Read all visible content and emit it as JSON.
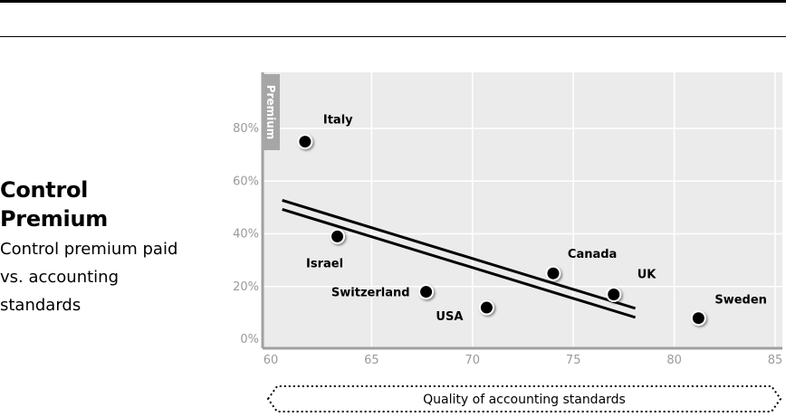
{
  "chart_data": {
    "type": "scatter",
    "title": "Control Premium",
    "subtitle": "Control premium paid vs. accounting standards",
    "xlabel": "Quality of accounting standards",
    "ylabel": "Premium",
    "xlim": [
      60,
      85
    ],
    "ylim": [
      0,
      100
    ],
    "x_ticks": [
      "60",
      "65",
      "70",
      "75",
      "80",
      "85"
    ],
    "y_ticks": [
      "0%",
      "20%",
      "40%",
      "60%",
      "80%"
    ],
    "grid": true,
    "points": [
      {
        "label": "Italy",
        "x": 61.7,
        "y": 75
      },
      {
        "label": "Israel",
        "x": 63.3,
        "y": 39
      },
      {
        "label": "Switzerland",
        "x": 67.7,
        "y": 18
      },
      {
        "label": "USA",
        "x": 70.7,
        "y": 12
      },
      {
        "label": "Canada",
        "x": 74.0,
        "y": 25
      },
      {
        "label": "UK",
        "x": 77.0,
        "y": 17
      },
      {
        "label": "Sweden",
        "x": 81.2,
        "y": 8
      }
    ],
    "trend_line": {
      "x": [
        60.3,
        77.8
      ],
      "y": [
        51,
        10
      ]
    }
  },
  "colors": {
    "plot_bg": "#ebebeb",
    "grid": "#ffffff",
    "axis": "#a0a0a0",
    "point": "#000000"
  }
}
